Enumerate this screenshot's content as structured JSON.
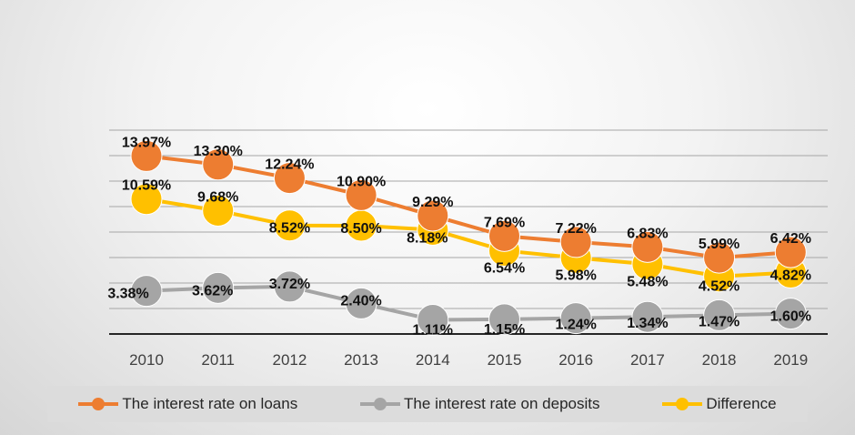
{
  "chart_data": {
    "type": "line",
    "categories": [
      "2010",
      "2011",
      "2012",
      "2013",
      "2014",
      "2015",
      "2016",
      "2017",
      "2018",
      "2019"
    ],
    "series": [
      {
        "name": "The interest rate on loans",
        "color": "#ED7D31",
        "values": [
          13.97,
          13.3,
          12.24,
          10.9,
          9.29,
          7.69,
          7.22,
          6.83,
          5.99,
          6.42
        ],
        "labels": [
          "13.97%",
          "13.30%",
          "12.24%",
          "10.90%",
          "9.29%",
          "7.69%",
          "7.22%",
          "6.83%",
          "5.99%",
          "6.42%"
        ]
      },
      {
        "name": "The interest rate on deposits",
        "color": "#A5A5A5",
        "values": [
          3.38,
          3.62,
          3.72,
          2.4,
          1.11,
          1.15,
          1.24,
          1.34,
          1.47,
          1.6
        ],
        "labels": [
          "3.38%",
          "3.62%",
          "3.72%",
          "2.40%",
          "1.11%",
          "1.15%",
          "1.24%",
          "1.34%",
          "1.47%",
          "1.60%"
        ]
      },
      {
        "name": "Difference",
        "color": "#FFC000",
        "values": [
          10.59,
          9.68,
          8.52,
          8.5,
          8.18,
          6.54,
          5.98,
          5.48,
          4.52,
          4.82
        ],
        "labels": [
          "10.59%",
          "9.68%",
          "8.52%",
          "8.50%",
          "8.18%",
          "6.54%",
          "5.98%",
          "5.48%",
          "4.52%",
          "4.82%"
        ]
      }
    ],
    "ylim": [
      0,
      16
    ],
    "grid": true,
    "legend_position": "bottom"
  }
}
